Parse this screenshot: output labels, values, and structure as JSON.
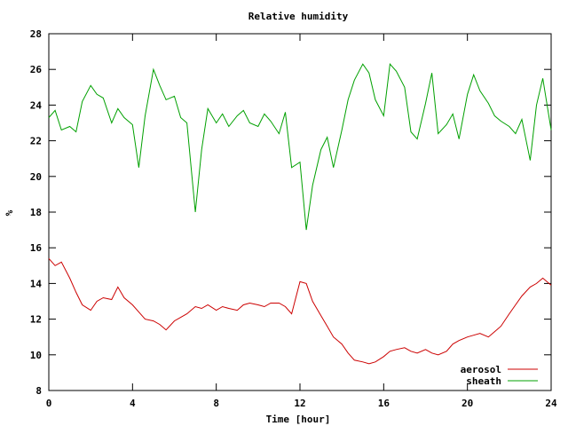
{
  "chart_data": {
    "type": "line",
    "title": "Relative humidity",
    "xlabel": "Time [hour]",
    "ylabel": "%",
    "xlim": [
      0,
      24
    ],
    "ylim": [
      8,
      28
    ],
    "x_ticks": [
      0,
      4,
      8,
      12,
      16,
      20,
      24
    ],
    "y_ticks": [
      8,
      10,
      12,
      14,
      16,
      18,
      20,
      22,
      24,
      26,
      28
    ],
    "grid": false,
    "legend_position": "bottom-right",
    "series": [
      {
        "name": "aerosol",
        "color": "#cc0000",
        "x": [
          0,
          0.3,
          0.6,
          1,
          1.3,
          1.6,
          2,
          2.3,
          2.6,
          3,
          3.3,
          3.6,
          4,
          4.3,
          4.6,
          5,
          5.3,
          5.6,
          6,
          6.3,
          6.6,
          7,
          7.3,
          7.6,
          8,
          8.3,
          8.6,
          9,
          9.3,
          9.6,
          10,
          10.3,
          10.6,
          11,
          11.3,
          11.6,
          12,
          12.3,
          12.6,
          13,
          13.3,
          13.6,
          14,
          14.3,
          14.6,
          15,
          15.3,
          15.6,
          16,
          16.3,
          16.6,
          17,
          17.3,
          17.6,
          18,
          18.3,
          18.6,
          19,
          19.3,
          19.6,
          20,
          20.3,
          20.6,
          21,
          21.3,
          21.6,
          22,
          22.3,
          22.6,
          23,
          23.3,
          23.6,
          24
        ],
        "y": [
          15.4,
          15.0,
          15.2,
          14.3,
          13.5,
          12.8,
          12.5,
          13.0,
          13.2,
          13.1,
          13.8,
          13.2,
          12.8,
          12.4,
          12.0,
          11.9,
          11.7,
          11.4,
          11.9,
          12.1,
          12.3,
          12.7,
          12.6,
          12.8,
          12.5,
          12.7,
          12.6,
          12.5,
          12.8,
          12.9,
          12.8,
          12.7,
          12.9,
          12.9,
          12.7,
          12.3,
          14.1,
          14.0,
          13.0,
          12.2,
          11.6,
          11.0,
          10.6,
          10.1,
          9.7,
          9.6,
          9.5,
          9.6,
          9.9,
          10.2,
          10.3,
          10.4,
          10.2,
          10.1,
          10.3,
          10.1,
          10.0,
          10.2,
          10.6,
          10.8,
          11.0,
          11.1,
          11.2,
          11.0,
          11.3,
          11.6,
          12.3,
          12.8,
          13.3,
          13.8,
          14.0,
          14.3,
          13.9
        ]
      },
      {
        "name": "sheath",
        "color": "#00a000",
        "x": [
          0,
          0.3,
          0.6,
          1,
          1.3,
          1.6,
          2,
          2.3,
          2.6,
          3,
          3.3,
          3.6,
          4,
          4.3,
          4.6,
          5,
          5.3,
          5.6,
          6,
          6.3,
          6.6,
          7,
          7.3,
          7.6,
          8,
          8.3,
          8.6,
          9,
          9.3,
          9.6,
          10,
          10.3,
          10.6,
          11,
          11.3,
          11.6,
          12,
          12.3,
          12.6,
          13,
          13.3,
          13.6,
          14,
          14.3,
          14.6,
          15,
          15.3,
          15.6,
          16,
          16.3,
          16.6,
          17,
          17.3,
          17.6,
          18,
          18.3,
          18.6,
          19,
          19.3,
          19.6,
          20,
          20.3,
          20.6,
          21,
          21.3,
          21.6,
          22,
          22.3,
          22.6,
          23,
          23.3,
          23.6,
          24
        ],
        "y": [
          23.3,
          23.7,
          22.6,
          22.8,
          22.5,
          24.2,
          25.1,
          24.6,
          24.4,
          23.0,
          23.8,
          23.3,
          22.9,
          20.5,
          23.4,
          26.0,
          25.1,
          24.3,
          24.5,
          23.3,
          23.0,
          18.0,
          21.5,
          23.8,
          23.0,
          23.5,
          22.8,
          23.4,
          23.7,
          23.0,
          22.8,
          23.5,
          23.1,
          22.4,
          23.6,
          20.5,
          20.8,
          17.0,
          19.5,
          21.5,
          22.2,
          20.5,
          22.6,
          24.3,
          25.4,
          26.3,
          25.8,
          24.3,
          23.4,
          26.3,
          25.9,
          25.0,
          22.5,
          22.1,
          24.1,
          25.8,
          22.4,
          22.9,
          23.5,
          22.1,
          24.6,
          25.7,
          24.8,
          24.1,
          23.4,
          23.1,
          22.8,
          22.4,
          23.2,
          20.9,
          24.0,
          25.5,
          22.6
        ]
      }
    ]
  }
}
